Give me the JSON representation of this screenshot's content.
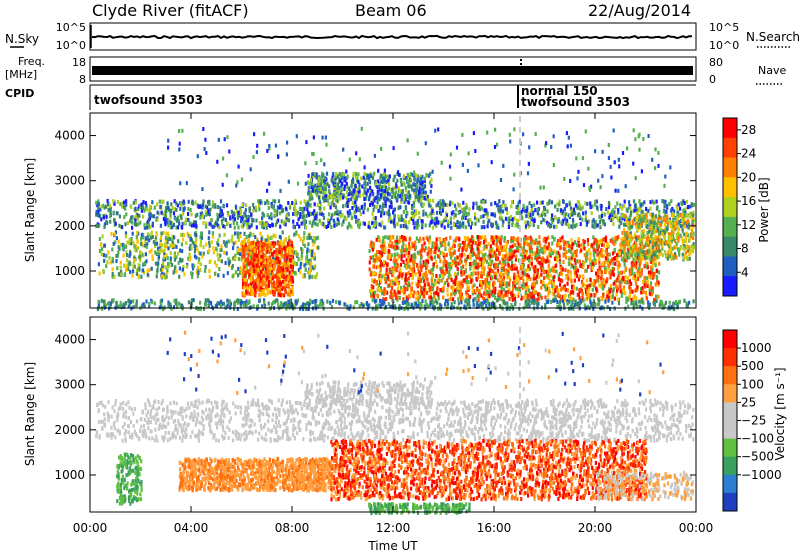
{
  "header": {
    "station": "Clyde River (fitACF)",
    "beam": "Beam 06",
    "date": "22/Aug/2014"
  },
  "nsky_panel": {
    "left_label": "N.Sky",
    "right_label": "N.Search",
    "left_ticks": [
      "10^5",
      "10^0"
    ],
    "right_ticks": [
      "10^5",
      "10^0"
    ]
  },
  "freq_panel": {
    "left_label_top": "Freq.",
    "left_label_bottom": "[MHz]",
    "right_label": "Nave",
    "left_ticks": [
      "18",
      "8"
    ],
    "right_ticks": [
      "80",
      "0"
    ]
  },
  "cpid_panel": {
    "label": "CPID",
    "modes": [
      {
        "name": "twofsound 3503",
        "start_hour": 0
      },
      {
        "name": "normal 150",
        "start_hour": 17
      },
      {
        "name": "twofsound 3503",
        "start_hour": 17
      }
    ]
  },
  "colors": {
    "power_scale": [
      "#1a1aff",
      "#1f5fc0",
      "#3a8a6a",
      "#55b050",
      "#b0d020",
      "#ffc000",
      "#ff8000",
      "#ff4000",
      "#ff0000"
    ],
    "velocity_scale": [
      "#1f3fc0",
      "#2a7fd0",
      "#3aa060",
      "#60c040",
      "#c8c8c8",
      "#c8c8c8",
      "#ffa040",
      "#ff7010",
      "#ff3000",
      "#ff0000"
    ]
  },
  "chart_data": [
    {
      "type": "heatmap",
      "ylabel": "Slant Range [km]",
      "xlabel": "Time UT",
      "x_ticks": [
        "00:00",
        "04:00",
        "08:00",
        "12:00",
        "16:00",
        "20:00",
        "00:00"
      ],
      "y_ticks": [
        "1000",
        "2000",
        "3000",
        "4000"
      ],
      "ylim": [
        180,
        4500
      ],
      "xlim_hours": [
        0,
        24
      ],
      "colorbar_label": "Power [dB]",
      "colorbar_ticks": [
        "4",
        "8",
        "12",
        "16",
        "20",
        "24",
        "28"
      ],
      "colorbar_range": [
        0,
        30
      ]
    },
    {
      "type": "heatmap",
      "ylabel": "Slant Range [km]",
      "xlabel": "Time UT",
      "x_ticks": [
        "00:00",
        "04:00",
        "08:00",
        "12:00",
        "16:00",
        "20:00",
        "00:00"
      ],
      "y_ticks": [
        "1000",
        "2000",
        "3000",
        "4000"
      ],
      "ylim": [
        180,
        4500
      ],
      "xlim_hours": [
        0,
        24
      ],
      "colorbar_label": "Velocity [m s⁻¹]",
      "colorbar_ticks": [
        "1000",
        "500",
        "100",
        "25",
        "−25",
        "−100",
        "−500",
        "−1000"
      ]
    }
  ]
}
